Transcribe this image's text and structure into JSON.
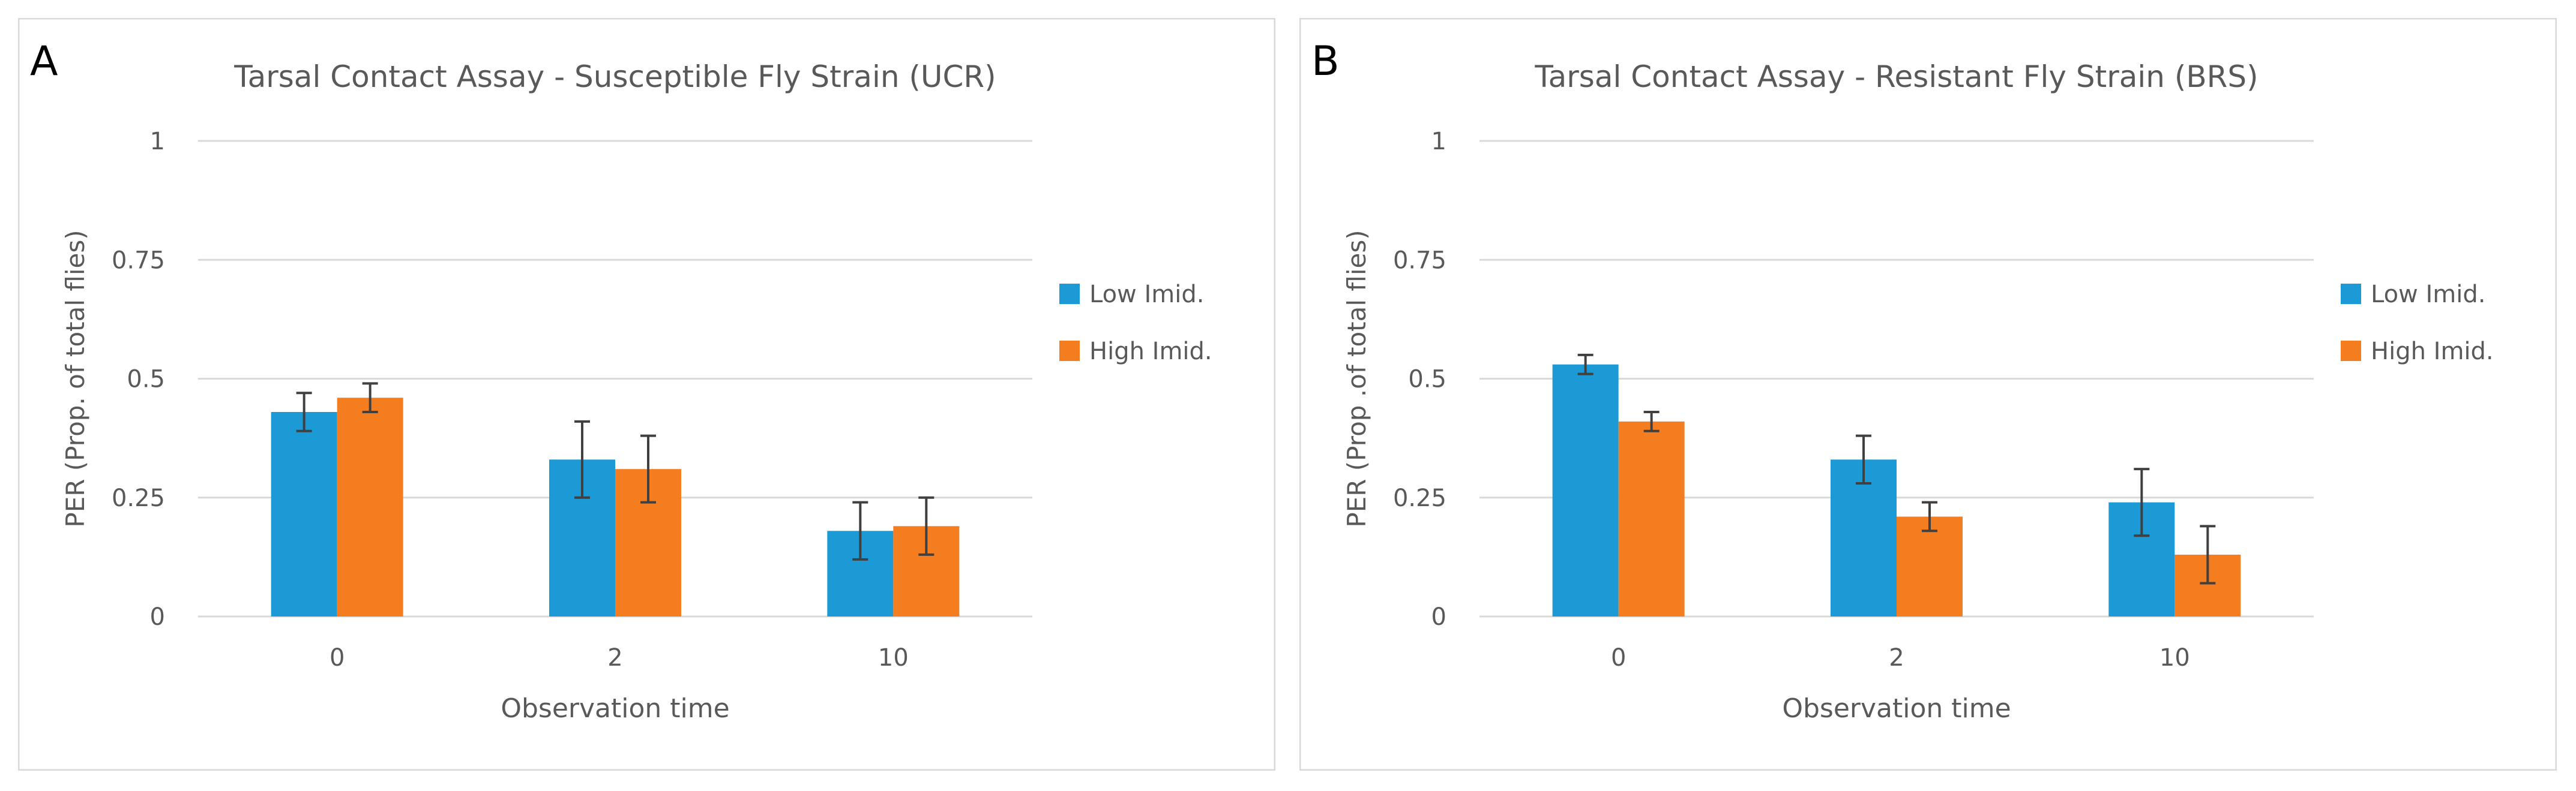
{
  "panels": [
    {
      "letter": "A",
      "chart_data": {
        "type": "bar",
        "title": "Tarsal Contact Assay - Susceptible Fly Strain (UCR)",
        "xlabel": "Observation time",
        "ylabel": "PER (Prop. of total flies)",
        "categories": [
          "0",
          "2",
          "10"
        ],
        "ylim": [
          0,
          1
        ],
        "yticks": [
          0,
          0.25,
          0.5,
          0.75,
          1
        ],
        "ytick_labels": [
          "0",
          "0.25",
          "0.5",
          "0.75",
          "1"
        ],
        "grid": true,
        "legend_position": "right",
        "series": [
          {
            "name": "Low Imid.",
            "color": "#1B9AD6",
            "values": [
              0.43,
              0.33,
              0.18
            ],
            "errors": [
              0.04,
              0.08,
              0.06
            ]
          },
          {
            "name": "High Imid.",
            "color": "#F47D20",
            "values": [
              0.46,
              0.31,
              0.19
            ],
            "errors": [
              0.03,
              0.07,
              0.06
            ]
          }
        ]
      }
    },
    {
      "letter": "B",
      "chart_data": {
        "type": "bar",
        "title": "Tarsal Contact Assay - Resistant Fly Strain (BRS)",
        "xlabel": "Observation time",
        "ylabel": "PER (Prop .of total flies)",
        "categories": [
          "0",
          "2",
          "10"
        ],
        "ylim": [
          0,
          1
        ],
        "yticks": [
          0,
          0.25,
          0.5,
          0.75,
          1
        ],
        "ytick_labels": [
          "0",
          "0.25",
          "0.5",
          "0.75",
          "1"
        ],
        "grid": true,
        "legend_position": "right",
        "series": [
          {
            "name": "Low Imid.",
            "color": "#1B9AD6",
            "values": [
              0.53,
              0.33,
              0.24
            ],
            "errors": [
              0.02,
              0.05,
              0.07
            ]
          },
          {
            "name": "High Imid.",
            "color": "#F47D20",
            "values": [
              0.41,
              0.21,
              0.13
            ],
            "errors": [
              0.02,
              0.03,
              0.06
            ]
          }
        ]
      }
    }
  ]
}
